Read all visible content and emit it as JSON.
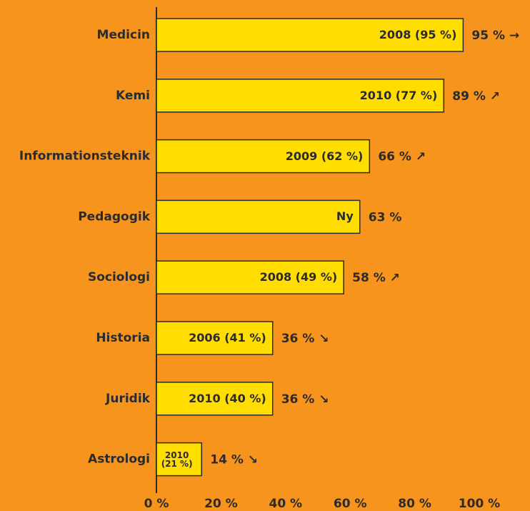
{
  "chart_data": {
    "type": "barh",
    "categories": [
      "Medicin",
      "Kemi",
      "Informationsteknik",
      "Pedagogik",
      "Sociologi",
      "Historia",
      "Juridik",
      "Astrologi"
    ],
    "values": [
      95,
      89,
      66,
      63,
      58,
      36,
      36,
      14
    ],
    "value_labels": [
      "95 % →",
      "89 % ↗",
      "66 % ↗",
      "63 %",
      "58 % ↗",
      "36 % ↘",
      "36 % ↘",
      "14 % ↘"
    ],
    "inner_labels": [
      "2008 (95 %)",
      "2010 (77 %)",
      "2009 (62 %)",
      "Ny",
      "2008 (49 %)",
      "2006 (41 %)",
      "2010 (40 %)",
      "2010 (21 %)"
    ],
    "color": "#ffdd00",
    "xlim": [
      0,
      100
    ],
    "xticks": [
      {
        "value": 0,
        "label": "0 %"
      },
      {
        "value": 20,
        "label": "20 %"
      },
      {
        "value": 40,
        "label": "40 %"
      },
      {
        "value": 60,
        "label": "60 %"
      },
      {
        "value": 80,
        "label": "80 %"
      },
      {
        "value": 100,
        "label": "100 %"
      }
    ]
  }
}
